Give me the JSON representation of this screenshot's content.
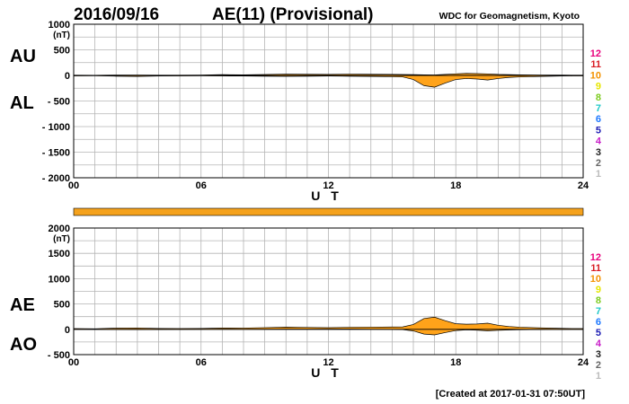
{
  "header": {
    "date": "2016/09/16",
    "title": "AE(11) (Provisional)",
    "source": "WDC for Geomagnetism, Kyoto"
  },
  "footer": {
    "created": "[Created at 2017-01-31 07:50UT]"
  },
  "colors": {
    "fill": "#FFA31A",
    "grid": "#b4b4b4",
    "axis": "#000000",
    "bar": "#F5A21D"
  },
  "station_counts": {
    "labels": [
      "12",
      "11",
      "10",
      "9",
      "8",
      "7",
      "6",
      "5",
      "4",
      "3",
      "2",
      "1"
    ],
    "colors": [
      "#E8007D",
      "#D81B23",
      "#F39200",
      "#E6E600",
      "#7CCB1E",
      "#1EC8C8",
      "#1E78FF",
      "#1E1EB4",
      "#C81EC8",
      "#222222",
      "#666666",
      "#BBBBBB"
    ]
  },
  "chart_data": [
    {
      "type": "area",
      "series": [
        {
          "name": "AU",
          "x": [
            0,
            1,
            2,
            3,
            4,
            5,
            6,
            7,
            8,
            9,
            10,
            11,
            12,
            13,
            14,
            15,
            15.5,
            16,
            16.5,
            17,
            17.5,
            18,
            18.5,
            19,
            19.5,
            20,
            20.5,
            21,
            21.5,
            22,
            22.5,
            23,
            23.5,
            24
          ],
          "values": [
            5,
            3,
            8,
            6,
            4,
            5,
            8,
            15,
            12,
            18,
            25,
            22,
            20,
            25,
            22,
            20,
            18,
            15,
            12,
            10,
            20,
            30,
            40,
            35,
            30,
            20,
            15,
            12,
            10,
            8,
            8,
            6,
            5,
            5
          ]
        },
        {
          "name": "AL",
          "x": [
            0,
            1,
            2,
            3,
            4,
            5,
            6,
            7,
            8,
            9,
            10,
            11,
            12,
            13,
            14,
            15,
            15.5,
            16,
            16.5,
            17,
            17.5,
            18,
            18.5,
            19,
            19.5,
            20,
            20.5,
            21,
            21.5,
            22,
            22.5,
            23,
            23.5,
            24
          ],
          "values": [
            -10,
            -8,
            -15,
            -20,
            -12,
            -10,
            -8,
            -10,
            -12,
            -15,
            -18,
            -15,
            -12,
            -15,
            -20,
            -25,
            -30,
            -80,
            -200,
            -230,
            -150,
            -80,
            -60,
            -70,
            -90,
            -60,
            -40,
            -30,
            -25,
            -20,
            -15,
            -12,
            -10,
            -10
          ]
        }
      ],
      "axis_labels": {
        "upper": "AU",
        "lower": "AL"
      },
      "xlabel": "U T",
      "yunit": "(nT)",
      "xlim": [
        0,
        24
      ],
      "ylim": [
        -2000,
        1000
      ],
      "xticks": [
        {
          "v": 0,
          "label": "00"
        },
        {
          "v": 6,
          "label": "06"
        },
        {
          "v": 12,
          "label": "12"
        },
        {
          "v": 18,
          "label": "18"
        },
        {
          "v": 24,
          "label": "24"
        }
      ],
      "yticks": [
        {
          "v": 1000,
          "label": "1000"
        },
        {
          "v": 500,
          "label": "500"
        },
        {
          "v": 0,
          "label": "0"
        },
        {
          "v": -500,
          "label": "- 500"
        },
        {
          "v": -1000,
          "label": "- 1000"
        },
        {
          "v": -1500,
          "label": "- 1500"
        },
        {
          "v": -2000,
          "label": "- 2000"
        }
      ],
      "grid": true
    },
    {
      "type": "area",
      "series": [
        {
          "name": "AE",
          "x": [
            0,
            1,
            2,
            3,
            4,
            5,
            6,
            7,
            8,
            9,
            10,
            11,
            12,
            13,
            14,
            15,
            15.5,
            16,
            16.5,
            17,
            17.5,
            18,
            18.5,
            19,
            19.5,
            20,
            20.5,
            21,
            21.5,
            22,
            22.5,
            23,
            23.5,
            24
          ],
          "values": [
            15,
            11,
            23,
            26,
            16,
            15,
            16,
            25,
            24,
            33,
            43,
            37,
            32,
            40,
            42,
            45,
            48,
            95,
            212,
            240,
            170,
            110,
            100,
            105,
            120,
            80,
            55,
            42,
            35,
            28,
            23,
            18,
            15,
            15
          ]
        },
        {
          "name": "AO",
          "x": [
            0,
            1,
            2,
            3,
            4,
            5,
            6,
            7,
            8,
            9,
            10,
            11,
            12,
            13,
            14,
            15,
            15.5,
            16,
            16.5,
            17,
            17.5,
            18,
            18.5,
            19,
            19.5,
            20,
            20.5,
            21,
            21.5,
            22,
            22.5,
            23,
            23.5,
            24
          ],
          "values": [
            -2,
            -2,
            -4,
            -7,
            -4,
            -2,
            0,
            2,
            0,
            1,
            3,
            3,
            4,
            5,
            1,
            -2,
            -6,
            -32,
            -94,
            -110,
            -65,
            -25,
            -10,
            -17,
            -30,
            -20,
            -12,
            -9,
            -7,
            -6,
            -3,
            -3,
            -2,
            -2
          ]
        }
      ],
      "axis_labels": {
        "upper": "AE",
        "lower": "AO"
      },
      "xlabel": "U T",
      "yunit": "(nT)",
      "xlim": [
        0,
        24
      ],
      "ylim": [
        -500,
        2000
      ],
      "xticks": [
        {
          "v": 0,
          "label": "00"
        },
        {
          "v": 6,
          "label": "06"
        },
        {
          "v": 12,
          "label": "12"
        },
        {
          "v": 18,
          "label": "18"
        },
        {
          "v": 24,
          "label": "24"
        }
      ],
      "yticks": [
        {
          "v": 2000,
          "label": "2000"
        },
        {
          "v": 1500,
          "label": "1500"
        },
        {
          "v": 1000,
          "label": "1000"
        },
        {
          "v": 500,
          "label": "500"
        },
        {
          "v": 0,
          "label": "0"
        },
        {
          "v": -500,
          "label": "- 500"
        }
      ],
      "grid": true
    }
  ]
}
